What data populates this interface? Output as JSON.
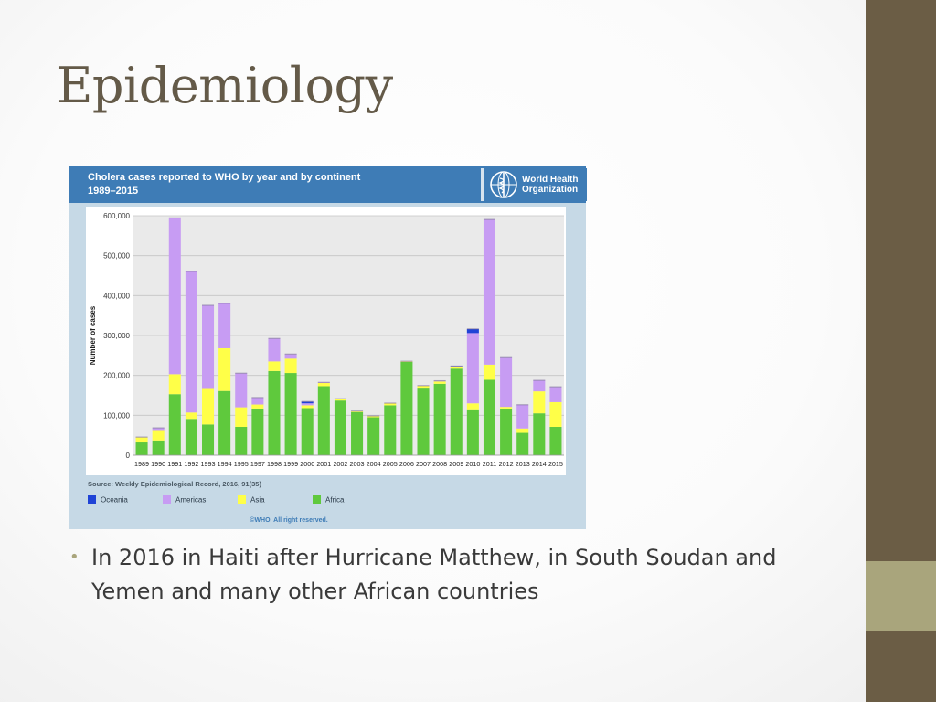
{
  "slide": {
    "title": "Epidemiology",
    "bullet": "In 2016 in Haiti after Hurricane Matthew, in South Soudan and Yemen and many other African countries"
  },
  "theme": {
    "bar_dark": "#6b5d45",
    "bar_light": "#a9a57c"
  },
  "figure": {
    "title_line1": "Cholera cases reported to WHO by year and by continent",
    "title_line2": "1989–2015",
    "org_line1": "World Health",
    "org_line2": "Organization",
    "logo_icon": "who-emblem-icon",
    "source": "Source: Weekly Epidemiological Record, 2016, 91(35)",
    "copyright": "©WHO. All right reserved."
  },
  "chart_data": {
    "type": "bar",
    "stacked": true,
    "title": "Cholera cases reported to WHO by year and by continent 1989–2015",
    "ylabel": "Number of cases",
    "xlabel": "",
    "ylim": [
      0,
      600000
    ],
    "yticks": [
      0,
      100000,
      200000,
      300000,
      400000,
      500000,
      600000
    ],
    "ytick_labels": [
      "0",
      "100,000",
      "200,000",
      "300,000",
      "400,000",
      "500,000",
      "600,000"
    ],
    "grid": true,
    "legend_position": "bottom",
    "categories": [
      "1989",
      "1990",
      "1991",
      "1992",
      "1993",
      "1994",
      "1995",
      "1997",
      "1998",
      "1999",
      "2000",
      "2001",
      "2002",
      "2003",
      "2004",
      "2005",
      "2006",
      "2007",
      "2008",
      "2009",
      "2010",
      "2011",
      "2012",
      "2013",
      "2014",
      "2015"
    ],
    "series": [
      {
        "name": "Africa",
        "color": "#5fc93d",
        "values": [
          32000,
          37000,
          153000,
          91000,
          77000,
          161000,
          71000,
          117000,
          211000,
          206000,
          118000,
          173000,
          137000,
          108000,
          95000,
          125000,
          234000,
          167000,
          179000,
          217000,
          115000,
          189000,
          117000,
          56000,
          105000,
          71000
        ]
      },
      {
        "name": "Asia",
        "color": "#ffff48",
        "values": [
          13000,
          26000,
          50000,
          16000,
          89000,
          107000,
          49000,
          10000,
          24000,
          36000,
          7000,
          8000,
          3000,
          2000,
          3000,
          5000,
          1000,
          7000,
          6000,
          4000,
          15000,
          38000,
          4000,
          11000,
          55000,
          62000
        ]
      },
      {
        "name": "Americas",
        "color": "#c79cf3",
        "values": [
          0,
          5000,
          391000,
          353000,
          209000,
          112000,
          85000,
          17000,
          57000,
          11000,
          5000,
          1000,
          1000,
          0,
          0,
          0,
          0,
          0,
          1000,
          0,
          176000,
          363000,
          123000,
          59000,
          27000,
          38000
        ]
      },
      {
        "name": "Oceania",
        "color": "#1f43d6",
        "values": [
          0,
          0,
          0,
          0,
          0,
          0,
          0,
          0,
          0,
          0,
          4000,
          0,
          0,
          0,
          0,
          0,
          0,
          0,
          0,
          2000,
          10000,
          0,
          0,
          0,
          0,
          0
        ]
      }
    ]
  }
}
